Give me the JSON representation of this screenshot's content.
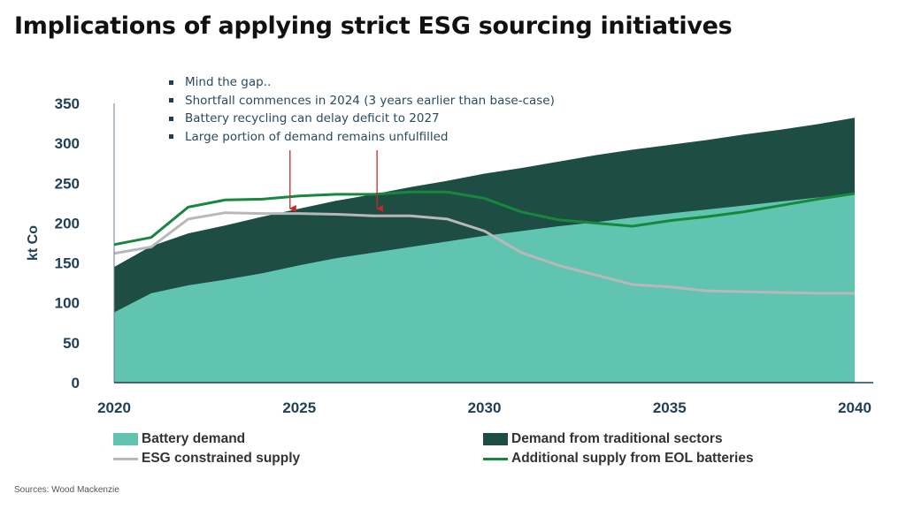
{
  "title": "Implications of applying strict ESG sourcing initiatives",
  "source": "Sources: Wood Mackenzie",
  "annotations": [
    "Mind the gap..",
    "Shortfall commences in 2024 (3 years earlier than base-case)",
    "Battery recycling can delay deficit to 2027",
    "Large portion of demand remains unfulfilled"
  ],
  "arrow_years": [
    2024.75,
    2027.1
  ],
  "colors": {
    "battery_demand": "#61c4b1",
    "traditional": "#1e4d43",
    "esg_supply": "#b8b8b8",
    "eol_supply": "#17873e",
    "arrow": "#c62828",
    "axis_text": "#1f3f57"
  },
  "chart_data": {
    "type": "area",
    "ylabel": "kt Co",
    "xlabel": "",
    "xlim": [
      2020,
      2040
    ],
    "ylim": [
      0,
      350
    ],
    "x_ticks": [
      2020,
      2025,
      2030,
      2035,
      2040
    ],
    "y_ticks": [
      0,
      50,
      100,
      150,
      200,
      250,
      300,
      350
    ],
    "x": [
      2020,
      2021,
      2022,
      2023,
      2024,
      2025,
      2026,
      2027,
      2028,
      2029,
      2030,
      2031,
      2032,
      2033,
      2034,
      2035,
      2036,
      2037,
      2038,
      2039,
      2040
    ],
    "legend_position": "bottom",
    "series": [
      {
        "name": "Battery demand",
        "kind": "area",
        "values": [
          88,
          112,
          122,
          129,
          137,
          147,
          156,
          163,
          170,
          177,
          184,
          190,
          196,
          201,
          207,
          212,
          217,
          222,
          227,
          232,
          237
        ]
      },
      {
        "name": "Demand from traditional sectors",
        "kind": "stacked_area",
        "values": [
          145,
          171,
          187,
          197,
          208,
          218,
          228,
          236,
          245,
          253,
          262,
          269,
          277,
          285,
          292,
          298,
          304,
          311,
          317,
          324,
          332
        ]
      },
      {
        "name": "ESG constrained supply",
        "kind": "line",
        "values": [
          162,
          170,
          205,
          213,
          212,
          212,
          211,
          209,
          209,
          205,
          190,
          163,
          147,
          135,
          123,
          120,
          115,
          114,
          113,
          112,
          112
        ]
      },
      {
        "name": "Additional supply from EOL batteries",
        "kind": "line",
        "values": [
          173,
          182,
          220,
          229,
          230,
          234,
          236,
          236,
          239,
          239,
          231,
          214,
          204,
          200,
          196,
          203,
          208,
          214,
          222,
          230,
          237
        ]
      }
    ]
  },
  "legend": [
    {
      "label": "Battery demand",
      "swatch": "box",
      "color_key": "battery_demand"
    },
    {
      "label": "Demand from traditional sectors",
      "swatch": "box",
      "color_key": "traditional"
    },
    {
      "label": "ESG constrained supply",
      "swatch": "line",
      "color_key": "esg_supply"
    },
    {
      "label": "Additional supply from EOL batteries",
      "swatch": "line",
      "color_key": "eol_supply"
    }
  ]
}
